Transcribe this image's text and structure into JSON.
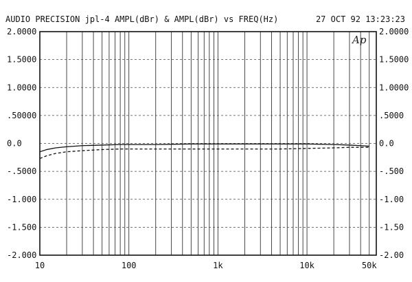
{
  "header": {
    "title": "AUDIO PRECISION jpl-4 AMPL(dBr) & AMPL(dBr) vs FREQ(Hz)",
    "timestamp": "27 OCT 92 13:23:23",
    "logo": "Ap"
  },
  "chart_data": {
    "type": "line",
    "title": "AUDIO PRECISION jpl-4 AMPL(dBr) & AMPL(dBr) vs FREQ(Hz)",
    "xlabel": "",
    "ylabel": "",
    "xscale": "log",
    "xlim": [
      10,
      60000
    ],
    "ylim": [
      -2.0,
      2.0
    ],
    "grid": true,
    "x_ticks": [
      {
        "value": 10,
        "label": "10"
      },
      {
        "value": 100,
        "label": "100"
      },
      {
        "value": 1000,
        "label": "1k"
      },
      {
        "value": 10000,
        "label": "10k"
      },
      {
        "value": 50000,
        "label": "50k"
      }
    ],
    "y_ticks": [
      {
        "value": 2.0,
        "left": "2.0000",
        "right": "2.0000"
      },
      {
        "value": 1.5,
        "left": "1.5000",
        "right": "1.5000"
      },
      {
        "value": 1.0,
        "left": "1.0000",
        "right": "1.0000"
      },
      {
        "value": 0.5,
        "left": ".50000",
        "right": ".5000"
      },
      {
        "value": 0.0,
        "left": "0.0",
        "right": "0.0"
      },
      {
        "value": -0.5,
        "left": "-.5000",
        "right": "-.500"
      },
      {
        "value": -1.0,
        "left": "-1.000",
        "right": "-1.00"
      },
      {
        "value": -1.5,
        "left": "-1.500",
        "right": "-1.50"
      },
      {
        "value": -2.0,
        "left": "-2.000",
        "right": "-2.00"
      }
    ],
    "series": [
      {
        "style": "solid",
        "color": "#111111",
        "x": [
          10,
          12,
          15,
          20,
          30,
          50,
          80,
          100,
          200,
          500,
          1000,
          2000,
          5000,
          10000,
          20000,
          30000,
          40000,
          50000
        ],
        "y": [
          -0.15,
          -0.11,
          -0.08,
          -0.06,
          -0.04,
          -0.03,
          -0.02,
          -0.02,
          -0.02,
          -0.01,
          -0.01,
          -0.01,
          -0.01,
          -0.01,
          -0.02,
          -0.03,
          -0.04,
          -0.05
        ]
      },
      {
        "style": "dashed",
        "color": "#111111",
        "x": [
          10,
          12,
          15,
          20,
          30,
          50,
          80,
          100,
          200,
          500,
          1000,
          2000,
          5000,
          10000,
          20000,
          30000,
          40000,
          50000
        ],
        "y": [
          -0.27,
          -0.22,
          -0.18,
          -0.15,
          -0.13,
          -0.11,
          -0.1,
          -0.1,
          -0.1,
          -0.1,
          -0.1,
          -0.1,
          -0.1,
          -0.09,
          -0.08,
          -0.07,
          -0.07,
          -0.07
        ]
      }
    ]
  }
}
